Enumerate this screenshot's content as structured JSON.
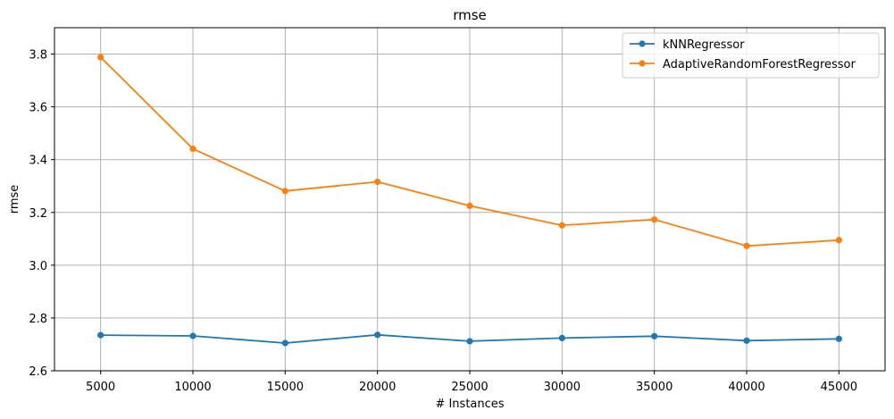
{
  "chart_data": {
    "type": "line",
    "title": "rmse",
    "xlabel": "# Instances",
    "ylabel": "rmse",
    "x": [
      5000,
      10000,
      15000,
      20000,
      25000,
      30000,
      35000,
      40000,
      45000
    ],
    "xticks": [
      "5000",
      "10000",
      "15000",
      "20000",
      "25000",
      "30000",
      "35000",
      "40000",
      "45000"
    ],
    "xlim": [
      2500,
      47500
    ],
    "ylim": [
      2.6,
      3.9
    ],
    "yticks": [
      "2.6",
      "2.8",
      "3.0",
      "3.2",
      "3.4",
      "3.6",
      "3.8"
    ],
    "grid": true,
    "legend_position": "top-right",
    "series": [
      {
        "name": "kNNRegressor",
        "color": "#1f77b4",
        "values": [
          2.735,
          2.732,
          2.705,
          2.736,
          2.712,
          2.724,
          2.731,
          2.714,
          2.721
        ]
      },
      {
        "name": "AdaptiveRandomForestRegressor",
        "color": "#ff7f0e",
        "values": [
          3.788,
          3.441,
          3.281,
          3.316,
          3.225,
          3.151,
          3.173,
          3.073,
          3.095
        ]
      }
    ]
  }
}
